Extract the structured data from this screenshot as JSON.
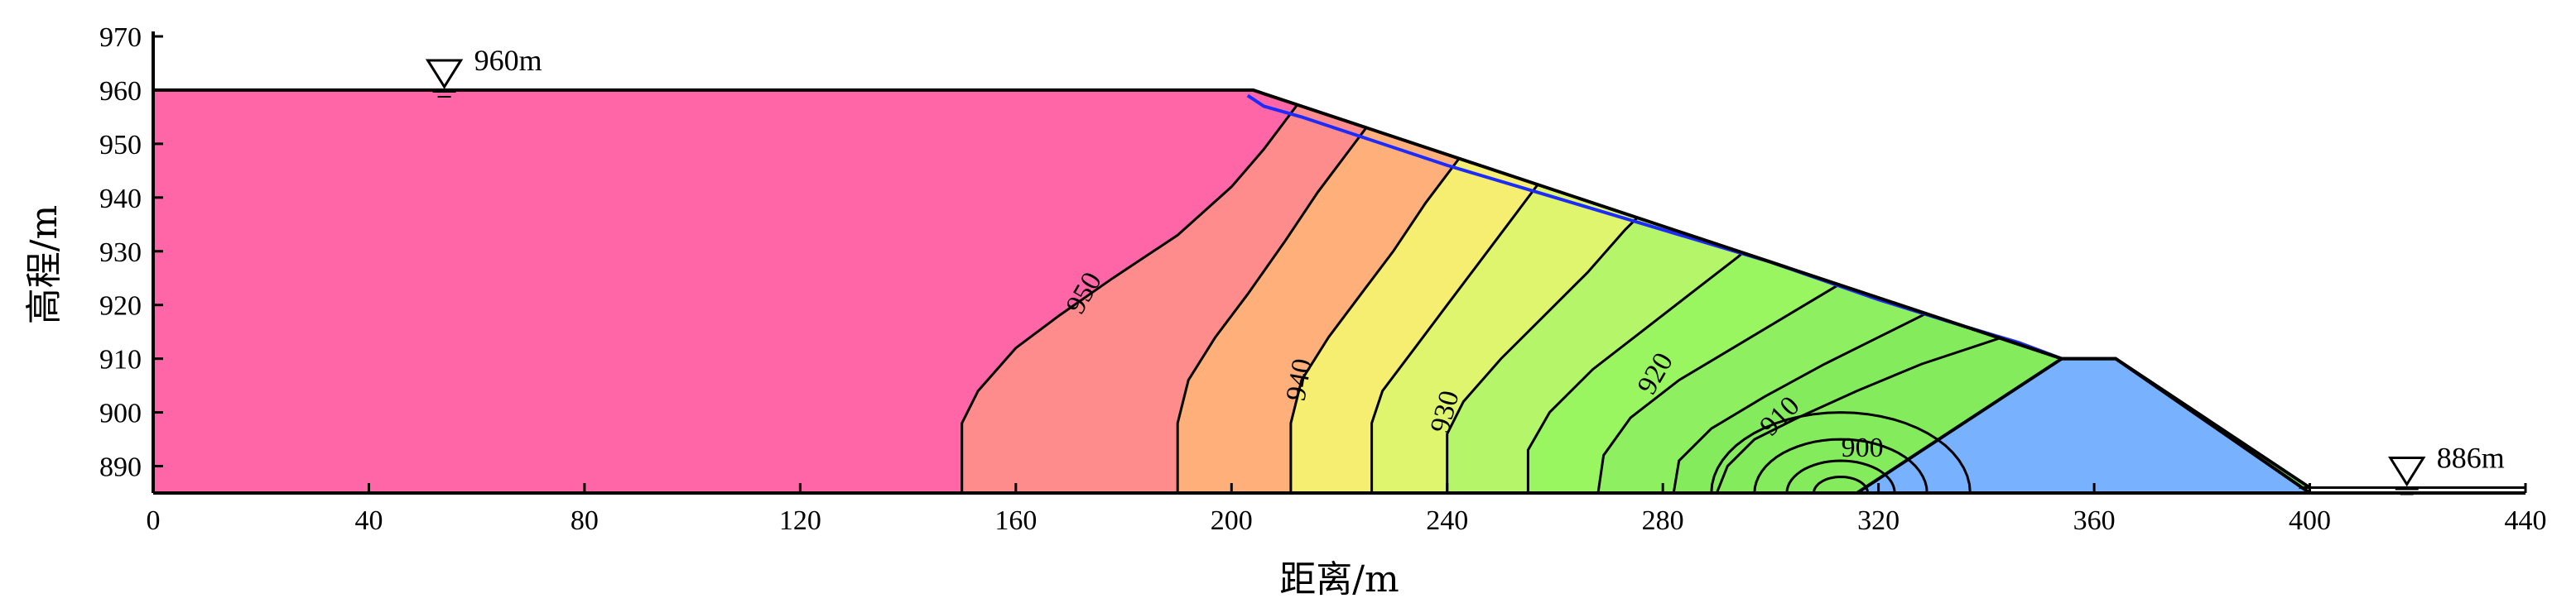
{
  "chart_data": {
    "type": "contour",
    "title": "",
    "xlabel": "距离/m",
    "ylabel": "高程/m",
    "xlim": [
      0,
      440
    ],
    "ylim": [
      885,
      970
    ],
    "x_ticks": [
      0,
      40,
      80,
      120,
      160,
      200,
      240,
      280,
      320,
      360,
      400,
      440
    ],
    "y_ticks": [
      890,
      900,
      910,
      920,
      930,
      940,
      950,
      960,
      970
    ],
    "water_levels": [
      {
        "label": "960m",
        "x": 54,
        "elevation": 960,
        "side": "upstream"
      },
      {
        "label": "886m",
        "x": 418,
        "elevation": 886,
        "side": "downstream"
      }
    ],
    "colors": {
      "reservoir": "#ff66a8",
      "band_945": "#ff8c8c",
      "band_940": "#ffb07a",
      "band_935": "#f5ee70",
      "band_930": "#dff56e",
      "band_925": "#b4f56a",
      "band_920": "#99f560",
      "band_915": "#8ef060",
      "band_910": "#84ec5c",
      "toe_drain": "#78b2ff",
      "phreatic_line": "#1c2bff",
      "contour_line": "#000000"
    },
    "contour_labels": [
      {
        "text": "950",
        "x": 173,
        "y": 922
      },
      {
        "text": "940",
        "x": 213,
        "y": 906
      },
      {
        "text": "930",
        "x": 240,
        "y": 900
      },
      {
        "text": "920",
        "x": 279,
        "y": 907
      },
      {
        "text": "910",
        "x": 302,
        "y": 899
      },
      {
        "text": "900",
        "x": 317,
        "y": 893
      }
    ],
    "dam_profile": [
      [
        0,
        885
      ],
      [
        0,
        960
      ],
      [
        204,
        960
      ],
      [
        354,
        910
      ],
      [
        364,
        910
      ],
      [
        400,
        886
      ],
      [
        400,
        885
      ]
    ],
    "toe_drain": [
      [
        316,
        885
      ],
      [
        354,
        910
      ],
      [
        364,
        910
      ],
      [
        400,
        885
      ]
    ],
    "phreatic_line": [
      [
        203,
        959
      ],
      [
        206,
        957
      ],
      [
        213,
        955
      ],
      [
        225,
        951
      ],
      [
        240,
        946
      ],
      [
        260,
        940
      ],
      [
        280,
        934
      ],
      [
        300,
        928
      ],
      [
        320,
        921
      ],
      [
        336,
        916
      ],
      [
        346,
        913
      ],
      [
        354,
        910
      ]
    ]
  }
}
